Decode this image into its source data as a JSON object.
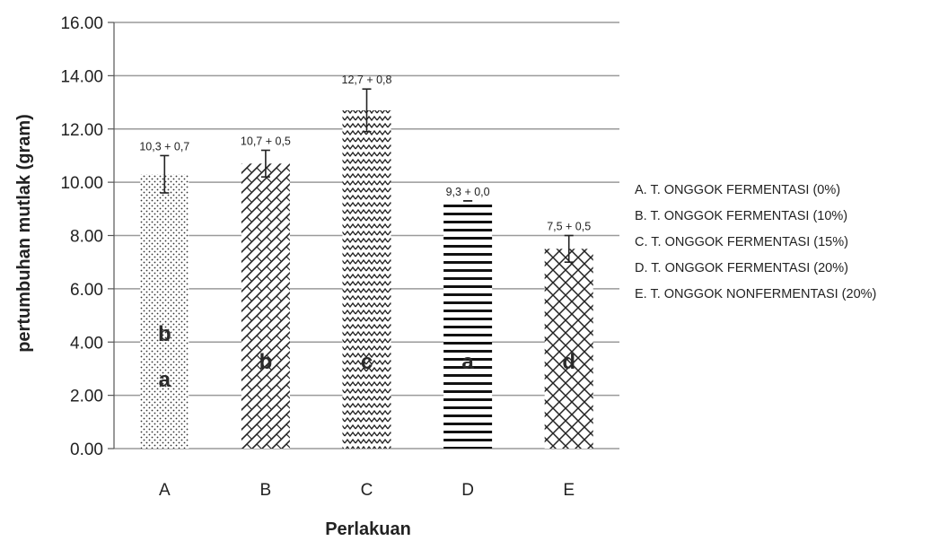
{
  "chart_data": {
    "type": "bar",
    "categories": [
      "A",
      "B",
      "C",
      "D",
      "E"
    ],
    "values": [
      10.3,
      10.7,
      12.7,
      9.3,
      7.5
    ],
    "errors": [
      0.7,
      0.5,
      0.8,
      0.0,
      0.5
    ],
    "data_labels": [
      "10,3 + 0,7",
      "10,7 + 0,5",
      "12,7 + 0,8",
      "9,3 + 0,0",
      "7,5 + 0,5"
    ],
    "letters": [
      [
        "b",
        "a"
      ],
      [
        "b"
      ],
      [
        "c"
      ],
      [
        "a"
      ],
      [
        "d"
      ]
    ],
    "patterns": [
      "dots",
      "diagonal",
      "zigzag",
      "horizontal",
      "diamond"
    ],
    "yticks": [
      "0.00",
      "2.00",
      "4.00",
      "6.00",
      "8.00",
      "10.00",
      "12.00",
      "14.00",
      "16.00"
    ],
    "ylim": [
      0,
      16
    ],
    "xlabel": "Perlakuan",
    "ylabel": "pertumbuhan mutlak (gram)",
    "grid": true,
    "legend_position": "right",
    "legend": [
      "A. T. ONGGOK FERMENTASI (0%)",
      "B. T. ONGGOK FERMENTASI (10%)",
      "C. T. ONGGOK FERMENTASI (15%)",
      "D. T. ONGGOK FERMENTASI (20%)",
      "E. T. ONGGOK NONFERMENTASI (20%)"
    ]
  }
}
